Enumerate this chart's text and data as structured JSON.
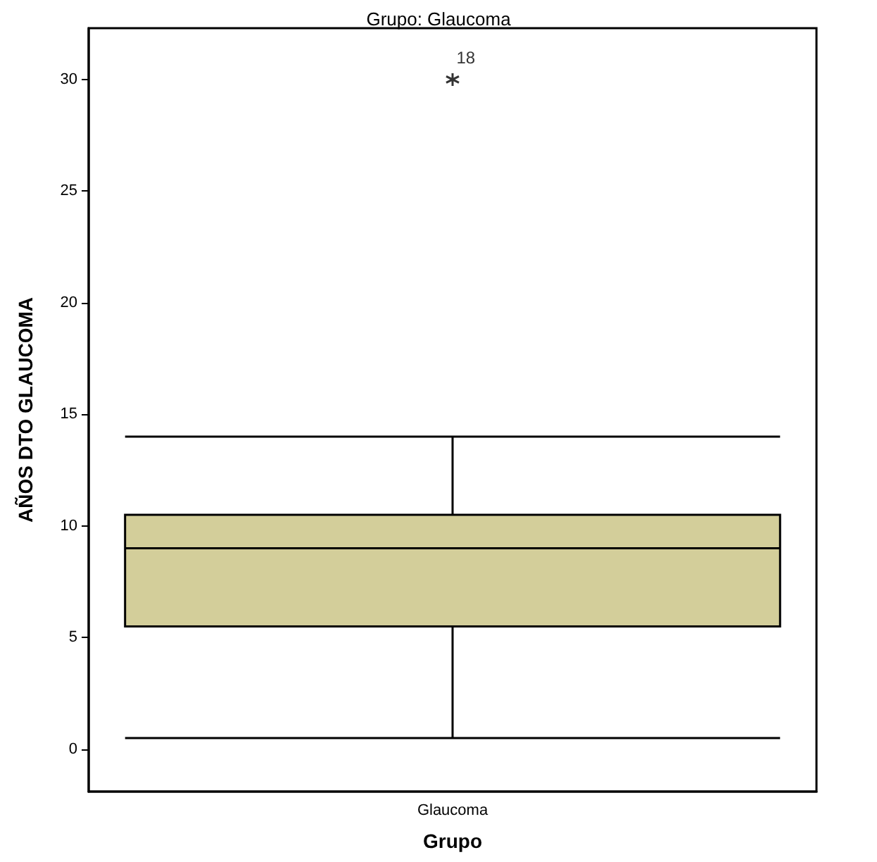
{
  "chart_data": {
    "type": "box",
    "title": "Grupo: Glaucoma",
    "xlabel": "Grupo",
    "ylabel": "AÑOS DTO GLAUCOMA",
    "categories": [
      "Glaucoma"
    ],
    "boxes": [
      {
        "low": 0.5,
        "q1": 5.5,
        "median": 9,
        "q3": 10.5,
        "high": 14,
        "outliers": [
          30
        ]
      }
    ],
    "color": "#d3ce9a",
    "marker": "star",
    "annotations": [
      "18"
    ],
    "ylim": [
      -1.9,
      32.3
    ],
    "yticks": [
      0,
      5,
      10,
      15,
      20,
      25,
      30
    ],
    "grid": false
  }
}
